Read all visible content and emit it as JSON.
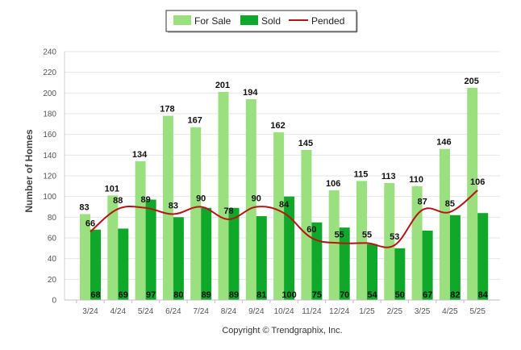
{
  "chart_data": {
    "type": "bar",
    "categories": [
      "3/24",
      "4/24",
      "5/24",
      "6/24",
      "7/24",
      "8/24",
      "9/24",
      "10/24",
      "11/24",
      "12/24",
      "1/25",
      "2/25",
      "3/25",
      "4/25",
      "5/25"
    ],
    "series": [
      {
        "name": "For Sale",
        "type": "bar",
        "color": "#9be07f",
        "values": [
          83,
          101,
          134,
          178,
          167,
          201,
          194,
          162,
          145,
          106,
          115,
          113,
          110,
          146,
          205
        ]
      },
      {
        "name": "Sold",
        "type": "bar",
        "color": "#10a82a",
        "values": [
          68,
          69,
          97,
          80,
          89,
          89,
          81,
          100,
          75,
          70,
          54,
          50,
          67,
          82,
          84
        ]
      },
      {
        "name": "Pended",
        "type": "line",
        "color": "#b81414",
        "values": [
          66,
          88,
          89,
          83,
          90,
          78,
          90,
          84,
          60,
          55,
          55,
          53,
          87,
          85,
          106
        ]
      }
    ],
    "title": "",
    "xlabel": "",
    "ylabel": "Number of Homes",
    "ylim": [
      0,
      240
    ],
    "yticks": [
      0,
      20,
      40,
      60,
      80,
      100,
      120,
      140,
      160,
      180,
      200,
      220,
      240
    ],
    "grid": true,
    "legend": "top-center",
    "footer": "Copyright © Trendgraphix, Inc."
  }
}
